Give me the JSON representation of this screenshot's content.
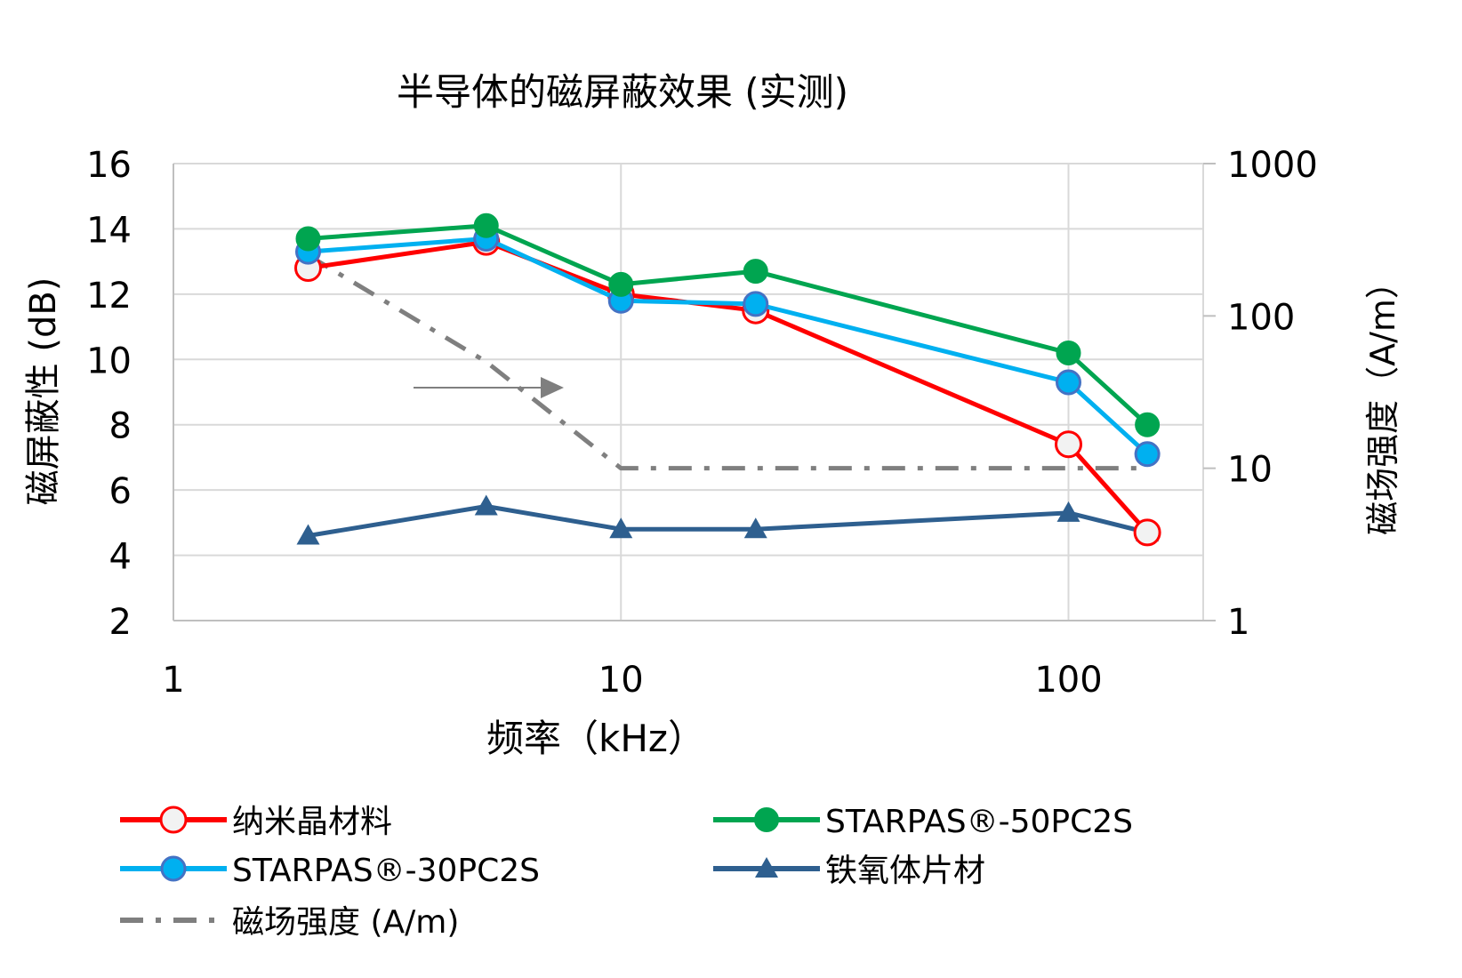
{
  "chart_data": {
    "type": "line",
    "title": "半导体的磁屏蔽效果 (实测)",
    "xlabel": "频率（kHz）",
    "ylabel": "磁屏蔽性 (dB)",
    "y2label": "磁场强度（A/m）",
    "x_scale": "log",
    "xlim": [
      1,
      200
    ],
    "ylim": [
      2,
      16
    ],
    "y2_scale": "log",
    "y2lim": [
      1,
      1000
    ],
    "x_ticks": [
      "1",
      "10",
      "100"
    ],
    "y_ticks": [
      "2",
      "4",
      "6",
      "8",
      "10",
      "12",
      "14",
      "16"
    ],
    "y2_ticks": [
      "1",
      "10",
      "100",
      "1000"
    ],
    "grid": true,
    "legend_position": "bottom",
    "x": [
      2,
      5,
      10,
      20,
      100,
      150
    ],
    "series": [
      {
        "name": "纳米晶材料",
        "axis": "left",
        "color": "#FF0000",
        "marker": "open-circle",
        "values": [
          12.8,
          13.6,
          12.0,
          11.5,
          7.4,
          4.7
        ]
      },
      {
        "name": "STARPAS®-50PC2S",
        "axis": "left",
        "color": "#00A550",
        "marker": "filled-circle",
        "values": [
          13.7,
          14.1,
          12.3,
          12.7,
          10.2,
          8.0
        ]
      },
      {
        "name": "STARPAS®-30PC2S",
        "axis": "left",
        "color": "#00B0F0",
        "marker": "filled-circle-blue-edge",
        "values": [
          13.3,
          13.7,
          11.8,
          11.7,
          9.3,
          7.1
        ]
      },
      {
        "name": "铁氧体片材",
        "axis": "left",
        "color": "#2E5F8F",
        "marker": "triangle",
        "values": [
          4.6,
          5.5,
          4.8,
          4.8,
          5.3,
          4.7
        ]
      },
      {
        "name": "磁场强度 (A/m)",
        "axis": "right",
        "color": "#7F7F7F",
        "marker": "none",
        "line_style": "dash-dot",
        "x": [
          2,
          5,
          10,
          20,
          100,
          150
        ],
        "values": [
          250,
          50,
          10,
          10,
          10,
          10
        ]
      }
    ],
    "annotations": [
      {
        "type": "arrow",
        "meaning": "dashed series reads on right axis",
        "color": "#7F7F7F"
      }
    ]
  }
}
